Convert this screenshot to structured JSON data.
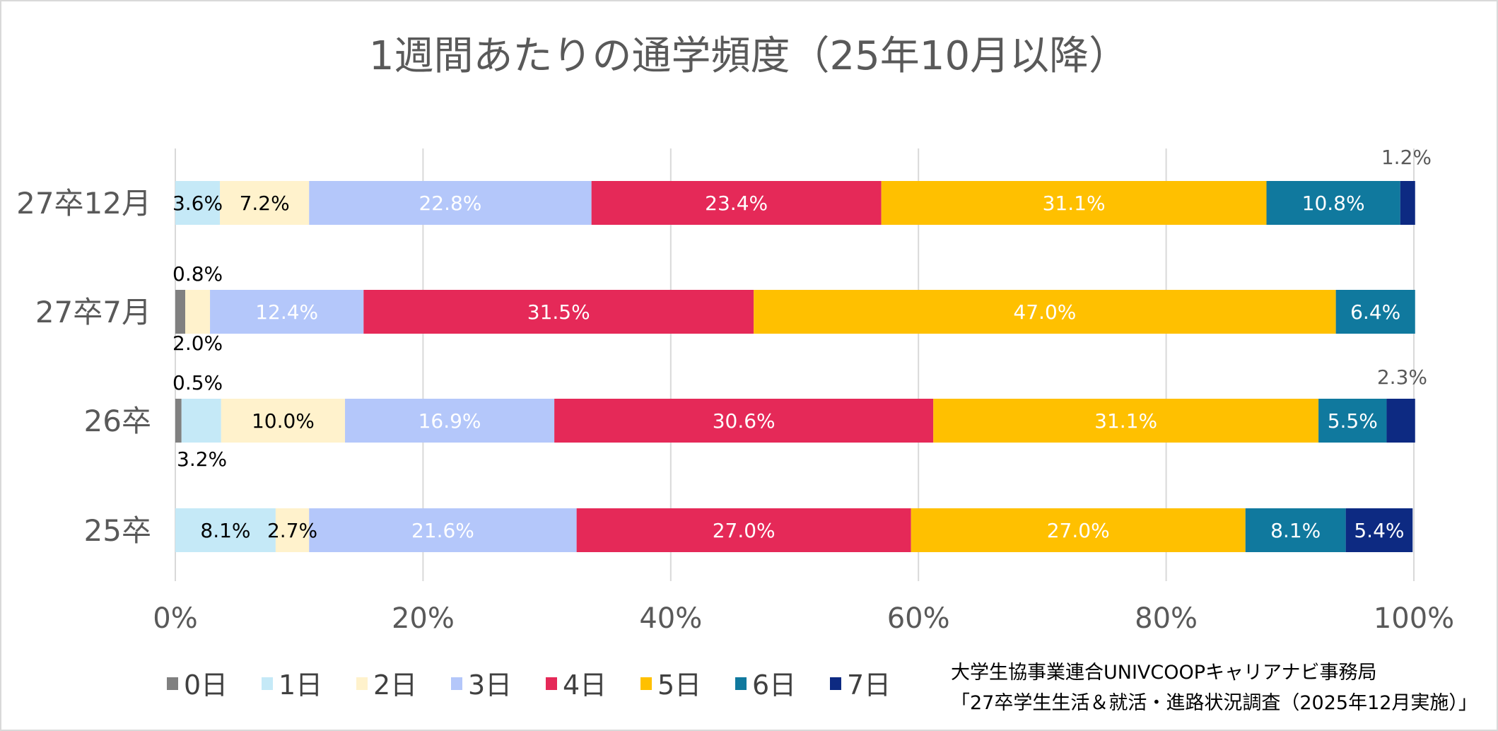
{
  "chart_data": {
    "type": "bar",
    "orientation": "horizontal-stacked-100",
    "title": "1週間あたりの通学頻度（25年10月以降）",
    "categories": [
      "27卒12月",
      "27卒7月",
      "26卒",
      "25卒"
    ],
    "series": [
      {
        "name": "0日",
        "color": "#808080",
        "values": [
          0,
          0.8,
          0.5,
          0
        ],
        "labels": [
          null,
          "0.8%",
          "0.5%",
          null
        ]
      },
      {
        "name": "1日",
        "color": "#C5E9F7",
        "values": [
          3.6,
          0,
          3.2,
          8.1
        ],
        "labels": [
          "3.6%",
          null,
          "3.2%",
          "8.1%"
        ]
      },
      {
        "name": "2日",
        "color": "#FFF2CC",
        "values": [
          7.2,
          2.0,
          10.0,
          2.7
        ],
        "labels": [
          "7.2%",
          "2.0%",
          "10.0%",
          "2.7%"
        ]
      },
      {
        "name": "3日",
        "color": "#B4C7FA",
        "values": [
          22.8,
          12.4,
          16.9,
          21.6
        ],
        "labels": [
          "22.8%",
          "12.4%",
          "16.9%",
          "21.6%"
        ]
      },
      {
        "name": "4日",
        "color": "#E52958",
        "values": [
          23.4,
          31.5,
          30.6,
          27.0
        ],
        "labels": [
          "23.4%",
          "31.5%",
          "30.6%",
          "27.0%"
        ]
      },
      {
        "name": "5日",
        "color": "#FFC000",
        "values": [
          31.1,
          47.0,
          31.1,
          27.0
        ],
        "labels": [
          "31.1%",
          "47.0%",
          "31.1%",
          "27.0%"
        ]
      },
      {
        "name": "6日",
        "color": "#10799E",
        "values": [
          10.8,
          6.4,
          5.5,
          8.1
        ],
        "labels": [
          "10.8%",
          "6.4%",
          "5.5%",
          "8.1%"
        ]
      },
      {
        "name": "7日",
        "color": "#0D2A82",
        "values": [
          1.2,
          0,
          2.3,
          5.4
        ],
        "labels": [
          "1.2%",
          null,
          "2.3%",
          "5.4%"
        ]
      }
    ],
    "xlim": [
      0,
      100
    ],
    "x_ticks": [
      "0%",
      "20%",
      "40%",
      "60%",
      "80%",
      "100%"
    ],
    "grid": true,
    "legend_position": "bottom"
  },
  "source": {
    "line1": "大学生協事業連合UNIVCOOPキャリアナビ事務局",
    "line2": "「27卒学生生活＆就活・進路状況調査（2025年12月実施）」"
  }
}
